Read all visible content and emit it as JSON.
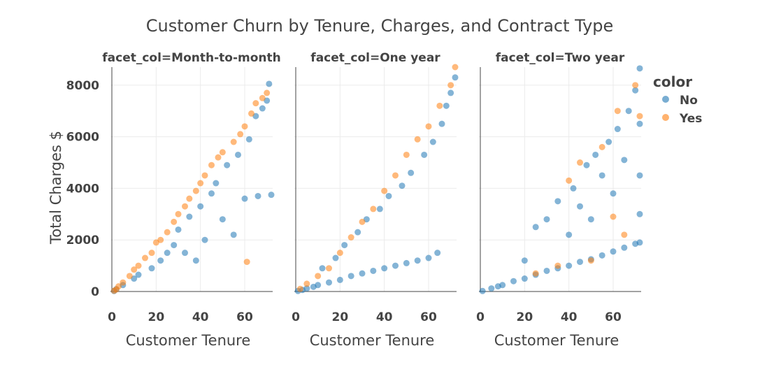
{
  "chart_data": {
    "type": "scatter",
    "title": "Customer Churn by Tenure, Charges, and Contract Type",
    "xlabel": "Customer Tenure",
    "ylabel": "Total Charges $",
    "xlim": [
      0,
      72
    ],
    "ylim": [
      0,
      8700
    ],
    "x_ticks": [
      0,
      20,
      40,
      60
    ],
    "y_ticks": [
      0,
      2000,
      4000,
      6000,
      8000
    ],
    "grid": true,
    "legend": {
      "title": "color",
      "placement": "right"
    },
    "facets": [
      {
        "title": "facet_col=Month-to-month",
        "series": [
          {
            "name": "No",
            "color": "#1f77b4",
            "points": [
              [
                1,
                20
              ],
              [
                2,
                90
              ],
              [
                5,
                250
              ],
              [
                10,
                500
              ],
              [
                12,
                650
              ],
              [
                18,
                900
              ],
              [
                22,
                1200
              ],
              [
                25,
                1500
              ],
              [
                28,
                1800
              ],
              [
                30,
                2400
              ],
              [
                33,
                1500
              ],
              [
                35,
                2900
              ],
              [
                38,
                1200
              ],
              [
                40,
                3300
              ],
              [
                42,
                2000
              ],
              [
                45,
                3800
              ],
              [
                47,
                4200
              ],
              [
                50,
                2800
              ],
              [
                52,
                4900
              ],
              [
                55,
                2200
              ],
              [
                57,
                5300
              ],
              [
                60,
                3600
              ],
              [
                62,
                5900
              ],
              [
                65,
                6800
              ],
              [
                66,
                3700
              ],
              [
                68,
                7100
              ],
              [
                70,
                7400
              ],
              [
                71,
                8050
              ],
              [
                72,
                3750
              ]
            ]
          },
          {
            "name": "Yes",
            "color": "#ff7f0e",
            "points": [
              [
                1,
                30
              ],
              [
                2,
                80
              ],
              [
                3,
                200
              ],
              [
                5,
                350
              ],
              [
                8,
                600
              ],
              [
                10,
                850
              ],
              [
                12,
                1000
              ],
              [
                15,
                1300
              ],
              [
                18,
                1500
              ],
              [
                20,
                1900
              ],
              [
                22,
                2000
              ],
              [
                25,
                2300
              ],
              [
                28,
                2700
              ],
              [
                30,
                3000
              ],
              [
                33,
                3300
              ],
              [
                35,
                3600
              ],
              [
                38,
                3900
              ],
              [
                40,
                4200
              ],
              [
                42,
                4500
              ],
              [
                45,
                4900
              ],
              [
                48,
                5200
              ],
              [
                50,
                5400
              ],
              [
                55,
                5800
              ],
              [
                58,
                6100
              ],
              [
                60,
                6400
              ],
              [
                61,
                1150
              ],
              [
                63,
                6900
              ],
              [
                65,
                7300
              ],
              [
                68,
                7500
              ],
              [
                70,
                7700
              ]
            ]
          }
        ]
      },
      {
        "title": "facet_col=One year",
        "series": [
          {
            "name": "No",
            "color": "#1f77b4",
            "points": [
              [
                1,
                20
              ],
              [
                3,
                60
              ],
              [
                5,
                120
              ],
              [
                8,
                180
              ],
              [
                10,
                250
              ],
              [
                12,
                900
              ],
              [
                15,
                350
              ],
              [
                18,
                1300
              ],
              [
                20,
                450
              ],
              [
                22,
                1800
              ],
              [
                25,
                600
              ],
              [
                28,
                2300
              ],
              [
                30,
                700
              ],
              [
                32,
                2800
              ],
              [
                35,
                800
              ],
              [
                38,
                3200
              ],
              [
                40,
                900
              ],
              [
                42,
                3700
              ],
              [
                45,
                1000
              ],
              [
                48,
                4100
              ],
              [
                50,
                1100
              ],
              [
                52,
                4600
              ],
              [
                55,
                1200
              ],
              [
                58,
                5300
              ],
              [
                60,
                1300
              ],
              [
                62,
                5800
              ],
              [
                64,
                1500
              ],
              [
                66,
                6500
              ],
              [
                68,
                7200
              ],
              [
                70,
                7700
              ],
              [
                72,
                8300
              ]
            ]
          },
          {
            "name": "Yes",
            "color": "#ff7f0e",
            "points": [
              [
                2,
                100
              ],
              [
                5,
                300
              ],
              [
                10,
                600
              ],
              [
                15,
                900
              ],
              [
                20,
                1500
              ],
              [
                25,
                2100
              ],
              [
                30,
                2700
              ],
              [
                35,
                3200
              ],
              [
                40,
                3900
              ],
              [
                45,
                4500
              ],
              [
                50,
                5300
              ],
              [
                55,
                5900
              ],
              [
                60,
                6400
              ],
              [
                65,
                7200
              ],
              [
                70,
                8000
              ],
              [
                72,
                8700
              ]
            ]
          }
        ]
      },
      {
        "title": "facet_col=Two year",
        "series": [
          {
            "name": "No",
            "color": "#1f77b4",
            "points": [
              [
                1,
                20
              ],
              [
                5,
                120
              ],
              [
                8,
                200
              ],
              [
                10,
                250
              ],
              [
                15,
                400
              ],
              [
                20,
                500
              ],
              [
                25,
                650
              ],
              [
                30,
                800
              ],
              [
                35,
                900
              ],
              [
                40,
                1000
              ],
              [
                45,
                1150
              ],
              [
                50,
                1250
              ],
              [
                55,
                1400
              ],
              [
                60,
                1550
              ],
              [
                65,
                1700
              ],
              [
                70,
                1850
              ],
              [
                72,
                1900
              ],
              [
                20,
                1200
              ],
              [
                25,
                2500
              ],
              [
                30,
                2800
              ],
              [
                35,
                3500
              ],
              [
                40,
                2200
              ],
              [
                42,
                4000
              ],
              [
                45,
                3300
              ],
              [
                48,
                4900
              ],
              [
                50,
                2800
              ],
              [
                52,
                5300
              ],
              [
                55,
                4500
              ],
              [
                58,
                5800
              ],
              [
                60,
                3800
              ],
              [
                62,
                6300
              ],
              [
                65,
                5100
              ],
              [
                67,
                7000
              ],
              [
                70,
                7800
              ],
              [
                72,
                8650
              ],
              [
                72,
                6500
              ],
              [
                72,
                4500
              ],
              [
                72,
                3000
              ]
            ]
          },
          {
            "name": "Yes",
            "color": "#ff7f0e",
            "points": [
              [
                25,
                700
              ],
              [
                35,
                1000
              ],
              [
                40,
                4300
              ],
              [
                45,
                5000
              ],
              [
                50,
                1200
              ],
              [
                55,
                5600
              ],
              [
                60,
                2900
              ],
              [
                62,
                7000
              ],
              [
                65,
                2200
              ],
              [
                70,
                8000
              ],
              [
                72,
                6800
              ]
            ]
          }
        ]
      }
    ]
  }
}
